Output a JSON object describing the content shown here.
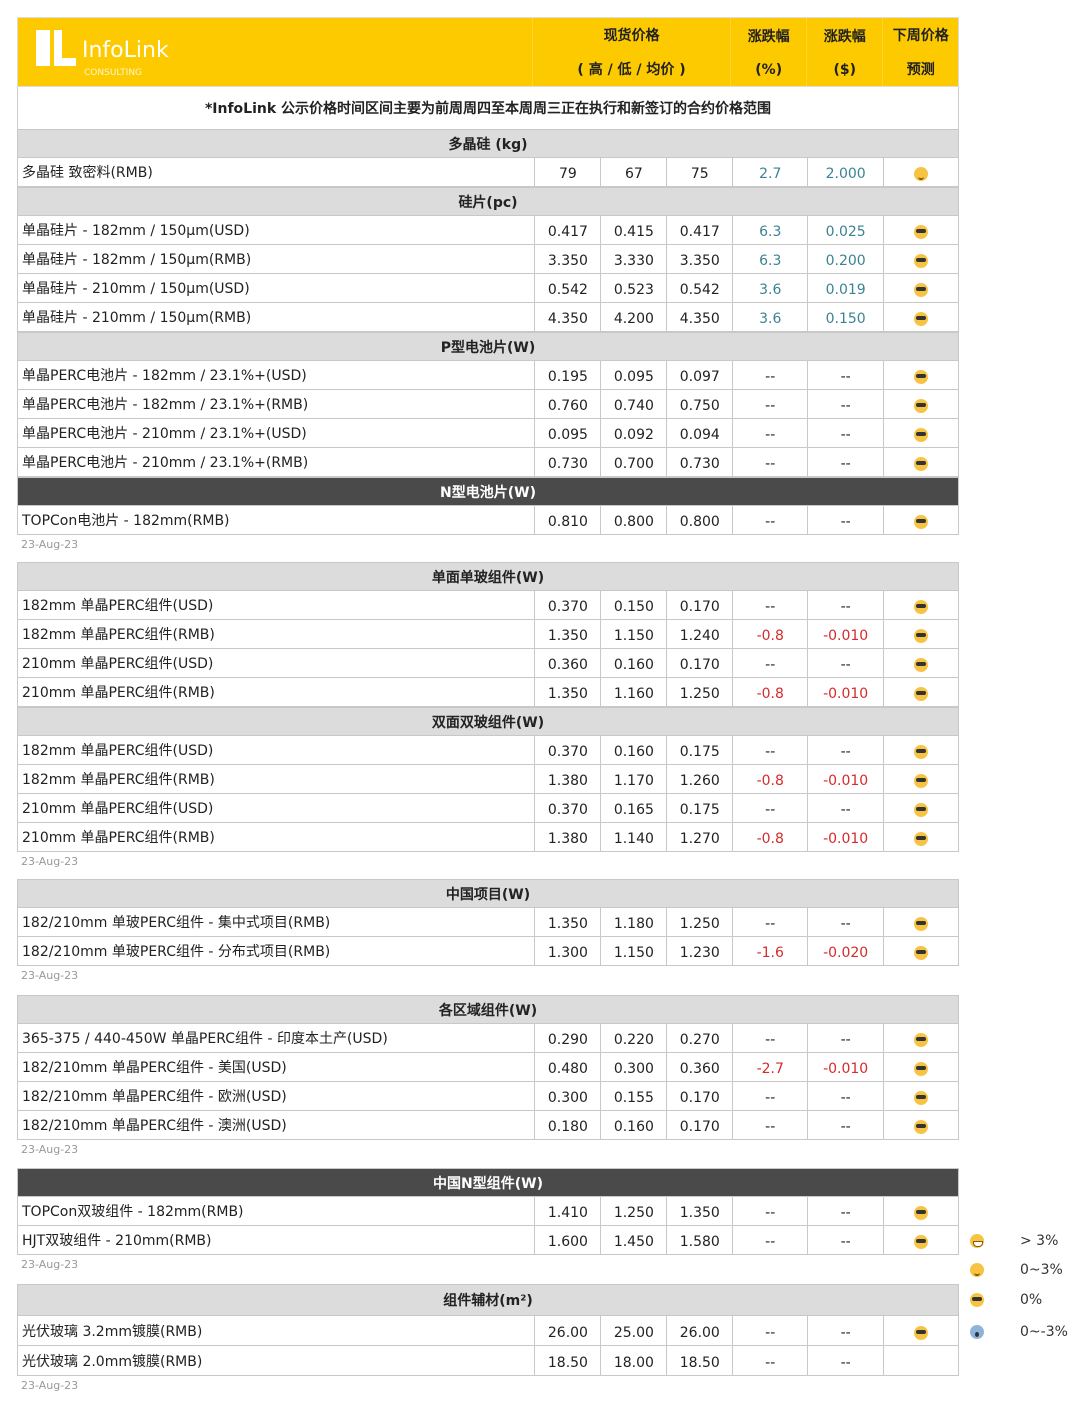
{
  "header": {
    "brand": "InfoLink",
    "brand_sub": "CONSULTING",
    "col_price_l1": "现货价格",
    "col_price_l2": "( 高 / 低 / 均价 )",
    "col_pct_l1": "涨跌幅",
    "col_pct_l2": "(%)",
    "col_usd_l1": "涨跌幅",
    "col_usd_l2": "($)",
    "col_fc_l1": "下周价格",
    "col_fc_l2": "预测"
  },
  "note": "*InfoLink 公示价格时间区间主要为前周周四至本周周三正在执行和新签订的合约价格范围",
  "blocks": [
    {
      "date": "23-Aug-23",
      "sections": [
        {
          "title": "多晶硅 (kg)",
          "rows": [
            [
              "多晶硅 致密料(RMB)",
              "79",
              "67",
              "75",
              "2.7",
              "2.000",
              "smile"
            ]
          ]
        },
        {
          "title": "硅片(pc)",
          "rows": [
            [
              "单晶硅片 - 182mm / 150μm(USD)",
              "0.417",
              "0.415",
              "0.417",
              "6.3",
              "0.025",
              "cool"
            ],
            [
              "单晶硅片 - 182mm / 150μm(RMB)",
              "3.350",
              "3.330",
              "3.350",
              "6.3",
              "0.200",
              "cool"
            ],
            [
              "单晶硅片 - 210mm / 150μm(USD)",
              "0.542",
              "0.523",
              "0.542",
              "3.6",
              "0.019",
              "cool"
            ],
            [
              "单晶硅片 - 210mm / 150μm(RMB)",
              "4.350",
              "4.200",
              "4.350",
              "3.6",
              "0.150",
              "cool"
            ]
          ]
        },
        {
          "title": "P型电池片(W)",
          "rows": [
            [
              "单晶PERC电池片 - 182mm / 23.1%+(USD)",
              "0.195",
              "0.095",
              "0.097",
              "--",
              "--",
              "cool"
            ],
            [
              "单晶PERC电池片 - 182mm / 23.1%+(RMB)",
              "0.760",
              "0.740",
              "0.750",
              "--",
              "--",
              "cool"
            ],
            [
              "单晶PERC电池片 - 210mm / 23.1%+(USD)",
              "0.095",
              "0.092",
              "0.094",
              "--",
              "--",
              "cool"
            ],
            [
              "单晶PERC电池片 - 210mm / 23.1%+(RMB)",
              "0.730",
              "0.700",
              "0.730",
              "--",
              "--",
              "cool"
            ]
          ]
        },
        {
          "title": "N型电池片(W)",
          "dark": true,
          "rows": [
            [
              "TOPCon电池片 - 182mm(RMB)",
              "0.810",
              "0.800",
              "0.800",
              "--",
              "--",
              "cool"
            ]
          ]
        }
      ]
    },
    {
      "date": "23-Aug-23",
      "sections": [
        {
          "title": "单面单玻组件(W)",
          "rows": [
            [
              "182mm 单晶PERC组件(USD)",
              "0.370",
              "0.150",
              "0.170",
              "--",
              "--",
              "cool"
            ],
            [
              "182mm 单晶PERC组件(RMB)",
              "1.350",
              "1.150",
              "1.240",
              "-0.8",
              "-0.010",
              "cool"
            ],
            [
              "210mm 单晶PERC组件(USD)",
              "0.360",
              "0.160",
              "0.170",
              "--",
              "--",
              "cool"
            ],
            [
              "210mm 单晶PERC组件(RMB)",
              "1.350",
              "1.160",
              "1.250",
              "-0.8",
              "-0.010",
              "cool"
            ]
          ]
        },
        {
          "title": "双面双玻组件(W)",
          "rows": [
            [
              "182mm 单晶PERC组件(USD)",
              "0.370",
              "0.160",
              "0.175",
              "--",
              "--",
              "cool"
            ],
            [
              "182mm 单晶PERC组件(RMB)",
              "1.380",
              "1.170",
              "1.260",
              "-0.8",
              "-0.010",
              "cool"
            ],
            [
              "210mm 单晶PERC组件(USD)",
              "0.370",
              "0.165",
              "0.175",
              "--",
              "--",
              "cool"
            ],
            [
              "210mm 单晶PERC组件(RMB)",
              "1.380",
              "1.140",
              "1.270",
              "-0.8",
              "-0.010",
              "cool"
            ]
          ]
        }
      ]
    },
    {
      "date": "23-Aug-23",
      "sections": [
        {
          "title": "中国项目(W)",
          "rows": [
            [
              "182/210mm 单玻PERC组件 - 集中式项目(RMB)",
              "1.350",
              "1.180",
              "1.250",
              "--",
              "--",
              "cool"
            ],
            [
              "182/210mm 单玻PERC组件 - 分布式项目(RMB)",
              "1.300",
              "1.150",
              "1.230",
              "-1.6",
              "-0.020",
              "cool"
            ]
          ]
        }
      ]
    },
    {
      "date": "23-Aug-23",
      "sections": [
        {
          "title": "各区域组件(W)",
          "rows": [
            [
              "365-375 / 440-450W 单晶PERC组件 - 印度本土产(USD)",
              "0.290",
              "0.220",
              "0.270",
              "--",
              "--",
              "cool"
            ],
            [
              "182/210mm 单晶PERC组件 - 美国(USD)",
              "0.480",
              "0.300",
              "0.360",
              "-2.7",
              "-0.010",
              "cool"
            ],
            [
              "182/210mm 单晶PERC组件 - 欧洲(USD)",
              "0.300",
              "0.155",
              "0.170",
              "--",
              "--",
              "cool"
            ],
            [
              "182/210mm 单晶PERC组件 - 澳洲(USD)",
              "0.180",
              "0.160",
              "0.170",
              "--",
              "--",
              "cool"
            ]
          ]
        }
      ]
    },
    {
      "date": "23-Aug-23",
      "sections": [
        {
          "title": "中国N型组件(W)",
          "dark": true,
          "rows": [
            [
              "TOPCon双玻组件 - 182mm(RMB)",
              "1.410",
              "1.250",
              "1.350",
              "--",
              "--",
              "cool"
            ],
            [
              "HJT双玻组件 - 210mm(RMB)",
              "1.600",
              "1.450",
              "1.580",
              "--",
              "--",
              "cool"
            ]
          ]
        }
      ]
    },
    {
      "date": "23-Aug-23",
      "sections": [
        {
          "title": "组件辅材(m²)",
          "rows": [
            [
              "光伏玻璃 3.2mm镀膜(RMB)",
              "26.00",
              "25.00",
              "26.00",
              "--",
              "--",
              "cool"
            ],
            [
              "光伏玻璃 2.0mm镀膜(RMB)",
              "18.50",
              "18.00",
              "18.50",
              "--",
              "--",
              ""
            ]
          ]
        }
      ]
    }
  ],
  "legend": [
    {
      "icon": "grin",
      "label": "> 3%"
    },
    {
      "icon": "smile",
      "label": "0~3%"
    },
    {
      "icon": "cool",
      "label": "0%"
    },
    {
      "icon": "fear",
      "label": "0~-3%"
    }
  ],
  "colors": {
    "header": "#fdca00",
    "positive": "#3b8393",
    "negative": "#d42b2b",
    "section": "#dcdcdc",
    "section_dark": "#4a4a4a"
  }
}
